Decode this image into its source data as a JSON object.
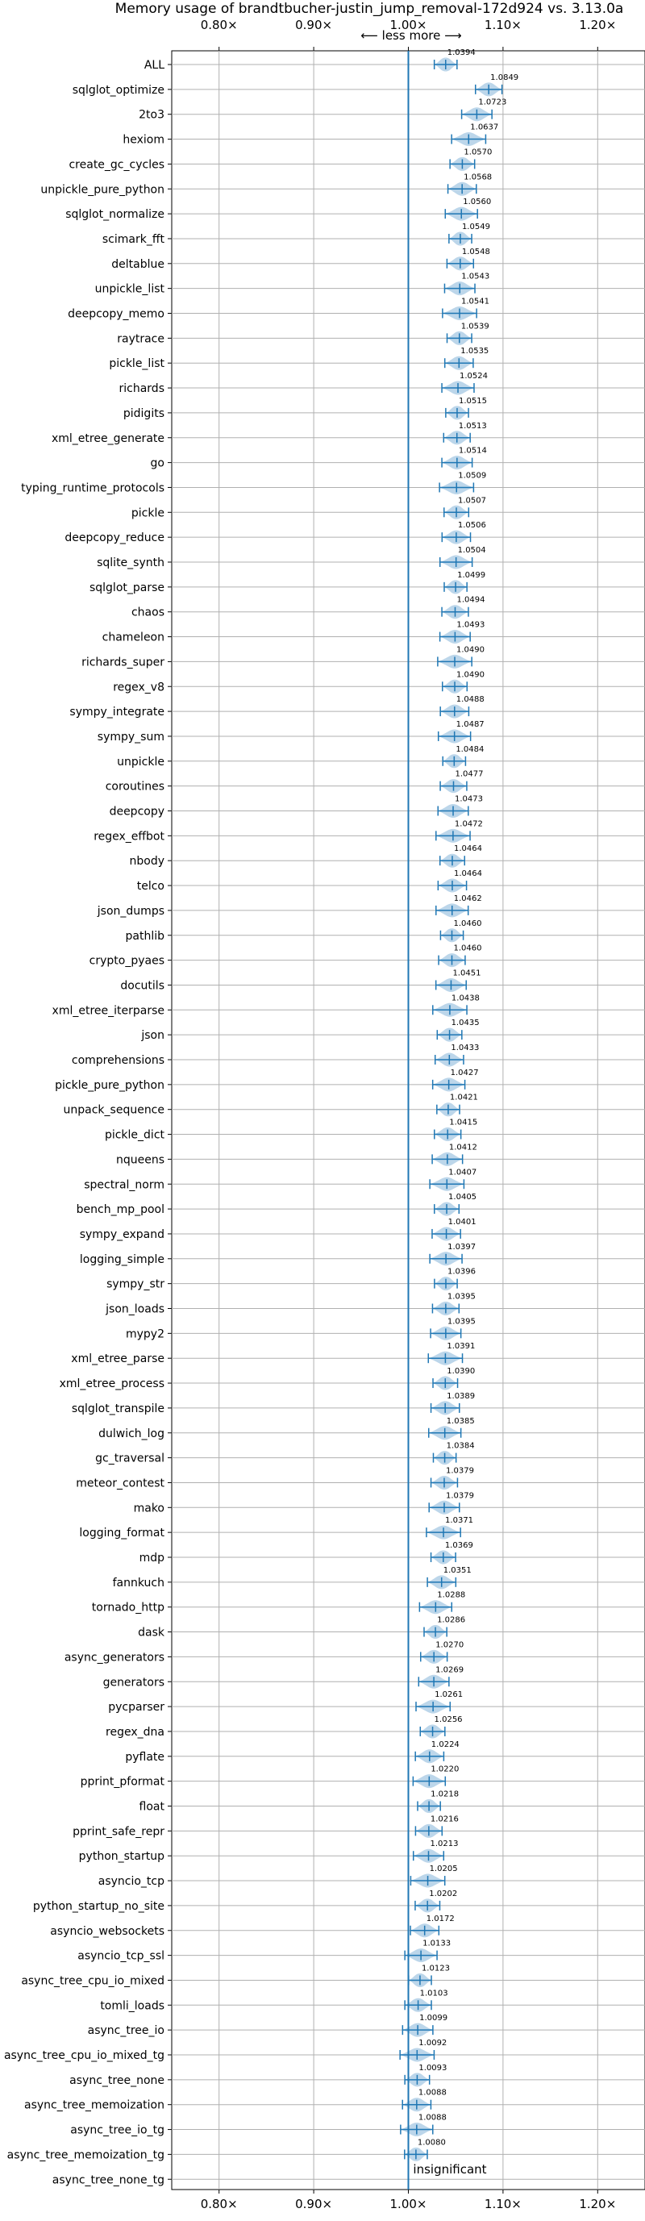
{
  "chart_data": {
    "type": "violin",
    "title": "Memory usage of brandtbucher-justin_jump_removal-172d924 vs. 3.13.0a",
    "x_ticks": [
      0.8,
      0.9,
      1.0,
      1.1,
      1.2
    ],
    "x_tick_labels": [
      "0.80×",
      "0.90×",
      "1.00×",
      "1.10×",
      "1.20×"
    ],
    "xlim": [
      0.75,
      1.25
    ],
    "reference_line": 1.0,
    "grid": true,
    "annotations": {
      "less_more": "⟵ less   more ⟶",
      "insignificant": "insignificant"
    },
    "colors": {
      "series": "#1f77b4",
      "violin_fill": "#a6c8e3"
    },
    "benchmarks": [
      {
        "name": "ALL",
        "value": 1.0394,
        "label": "1.0394"
      },
      {
        "name": "sqlglot_optimize",
        "value": 1.0849,
        "label": "1.0849"
      },
      {
        "name": "2to3",
        "value": 1.0723,
        "label": "1.0723"
      },
      {
        "name": "hexiom",
        "value": 1.0637,
        "label": "1.0637"
      },
      {
        "name": "create_gc_cycles",
        "value": 1.057,
        "label": "1.0570"
      },
      {
        "name": "unpickle_pure_python",
        "value": 1.0568,
        "label": "1.0568"
      },
      {
        "name": "sqlglot_normalize",
        "value": 1.056,
        "label": "1.0560"
      },
      {
        "name": "scimark_fft",
        "value": 1.0549,
        "label": "1.0549"
      },
      {
        "name": "deltablue",
        "value": 1.0548,
        "label": "1.0548"
      },
      {
        "name": "unpickle_list",
        "value": 1.0543,
        "label": "1.0543"
      },
      {
        "name": "deepcopy_memo",
        "value": 1.0541,
        "label": "1.0541"
      },
      {
        "name": "raytrace",
        "value": 1.0539,
        "label": "1.0539"
      },
      {
        "name": "pickle_list",
        "value": 1.0535,
        "label": "1.0535"
      },
      {
        "name": "richards",
        "value": 1.0524,
        "label": "1.0524"
      },
      {
        "name": "pidigits",
        "value": 1.0515,
        "label": "1.0515"
      },
      {
        "name": "xml_etree_generate",
        "value": 1.0513,
        "label": "1.0513"
      },
      {
        "name": "go",
        "value": 1.0514,
        "label": "1.0514"
      },
      {
        "name": "typing_runtime_protocols",
        "value": 1.0509,
        "label": "1.0509"
      },
      {
        "name": "pickle",
        "value": 1.0507,
        "label": "1.0507"
      },
      {
        "name": "deepcopy_reduce",
        "value": 1.0506,
        "label": "1.0506"
      },
      {
        "name": "sqlite_synth",
        "value": 1.0504,
        "label": "1.0504"
      },
      {
        "name": "sqlglot_parse",
        "value": 1.0499,
        "label": "1.0499"
      },
      {
        "name": "chaos",
        "value": 1.0494,
        "label": "1.0494"
      },
      {
        "name": "chameleon",
        "value": 1.0493,
        "label": "1.0493"
      },
      {
        "name": "richards_super",
        "value": 1.049,
        "label": "1.0490"
      },
      {
        "name": "regex_v8",
        "value": 1.049,
        "label": "1.0490"
      },
      {
        "name": "sympy_integrate",
        "value": 1.0488,
        "label": "1.0488"
      },
      {
        "name": "sympy_sum",
        "value": 1.0487,
        "label": "1.0487"
      },
      {
        "name": "unpickle",
        "value": 1.0484,
        "label": "1.0484"
      },
      {
        "name": "coroutines",
        "value": 1.0477,
        "label": "1.0477"
      },
      {
        "name": "deepcopy",
        "value": 1.0473,
        "label": "1.0473"
      },
      {
        "name": "regex_effbot",
        "value": 1.0472,
        "label": "1.0472"
      },
      {
        "name": "nbody",
        "value": 1.0464,
        "label": "1.0464"
      },
      {
        "name": "telco",
        "value": 1.0464,
        "label": "1.0464"
      },
      {
        "name": "json_dumps",
        "value": 1.0462,
        "label": "1.0462"
      },
      {
        "name": "pathlib",
        "value": 1.046,
        "label": "1.0460"
      },
      {
        "name": "crypto_pyaes",
        "value": 1.046,
        "label": "1.0460"
      },
      {
        "name": "docutils",
        "value": 1.0451,
        "label": "1.0451"
      },
      {
        "name": "xml_etree_iterparse",
        "value": 1.0438,
        "label": "1.0438"
      },
      {
        "name": "json",
        "value": 1.0435,
        "label": "1.0435"
      },
      {
        "name": "comprehensions",
        "value": 1.0433,
        "label": "1.0433"
      },
      {
        "name": "pickle_pure_python",
        "value": 1.0427,
        "label": "1.0427"
      },
      {
        "name": "unpack_sequence",
        "value": 1.0421,
        "label": "1.0421"
      },
      {
        "name": "pickle_dict",
        "value": 1.0415,
        "label": "1.0415"
      },
      {
        "name": "nqueens",
        "value": 1.0412,
        "label": "1.0412"
      },
      {
        "name": "spectral_norm",
        "value": 1.0407,
        "label": "1.0407"
      },
      {
        "name": "bench_mp_pool",
        "value": 1.0405,
        "label": "1.0405"
      },
      {
        "name": "sympy_expand",
        "value": 1.0401,
        "label": "1.0401"
      },
      {
        "name": "logging_simple",
        "value": 1.0397,
        "label": "1.0397"
      },
      {
        "name": "sympy_str",
        "value": 1.0396,
        "label": "1.0396"
      },
      {
        "name": "json_loads",
        "value": 1.0395,
        "label": "1.0395"
      },
      {
        "name": "mypy2",
        "value": 1.0395,
        "label": "1.0395"
      },
      {
        "name": "xml_etree_parse",
        "value": 1.0391,
        "label": "1.0391"
      },
      {
        "name": "xml_etree_process",
        "value": 1.039,
        "label": "1.0390"
      },
      {
        "name": "sqlglot_transpile",
        "value": 1.0389,
        "label": "1.0389"
      },
      {
        "name": "dulwich_log",
        "value": 1.0385,
        "label": "1.0385"
      },
      {
        "name": "gc_traversal",
        "value": 1.0384,
        "label": "1.0384"
      },
      {
        "name": "meteor_contest",
        "value": 1.0379,
        "label": "1.0379"
      },
      {
        "name": "mako",
        "value": 1.0379,
        "label": "1.0379"
      },
      {
        "name": "logging_format",
        "value": 1.0371,
        "label": "1.0371"
      },
      {
        "name": "mdp",
        "value": 1.0369,
        "label": "1.0369"
      },
      {
        "name": "fannkuch",
        "value": 1.0351,
        "label": "1.0351"
      },
      {
        "name": "tornado_http",
        "value": 1.0288,
        "label": "1.0288"
      },
      {
        "name": "dask",
        "value": 1.0286,
        "label": "1.0286"
      },
      {
        "name": "async_generators",
        "value": 1.027,
        "label": "1.0270"
      },
      {
        "name": "generators",
        "value": 1.0269,
        "label": "1.0269"
      },
      {
        "name": "pycparser",
        "value": 1.0261,
        "label": "1.0261"
      },
      {
        "name": "regex_dna",
        "value": 1.0256,
        "label": "1.0256"
      },
      {
        "name": "pyflate",
        "value": 1.0224,
        "label": "1.0224"
      },
      {
        "name": "pprint_pformat",
        "value": 1.022,
        "label": "1.0220"
      },
      {
        "name": "float",
        "value": 1.0218,
        "label": "1.0218"
      },
      {
        "name": "pprint_safe_repr",
        "value": 1.0216,
        "label": "1.0216"
      },
      {
        "name": "python_startup",
        "value": 1.0213,
        "label": "1.0213"
      },
      {
        "name": "asyncio_tcp",
        "value": 1.0205,
        "label": "1.0205"
      },
      {
        "name": "python_startup_no_site",
        "value": 1.0202,
        "label": "1.0202"
      },
      {
        "name": "asyncio_websockets",
        "value": 1.0172,
        "label": "1.0172"
      },
      {
        "name": "asyncio_tcp_ssl",
        "value": 1.0133,
        "label": "1.0133"
      },
      {
        "name": "async_tree_cpu_io_mixed",
        "value": 1.0123,
        "label": "1.0123"
      },
      {
        "name": "tomli_loads",
        "value": 1.0103,
        "label": "1.0103"
      },
      {
        "name": "async_tree_io",
        "value": 1.0099,
        "label": "1.0099"
      },
      {
        "name": "async_tree_cpu_io_mixed_tg",
        "value": 1.0092,
        "label": "1.0092"
      },
      {
        "name": "async_tree_none",
        "value": 1.0093,
        "label": "1.0093"
      },
      {
        "name": "async_tree_memoization",
        "value": 1.0088,
        "label": "1.0088"
      },
      {
        "name": "async_tree_io_tg",
        "value": 1.0088,
        "label": "1.0088"
      },
      {
        "name": "async_tree_memoization_tg",
        "value": 1.008,
        "label": "1.0080"
      },
      {
        "name": "async_tree_none_tg",
        "value": null,
        "label": ""
      }
    ]
  }
}
